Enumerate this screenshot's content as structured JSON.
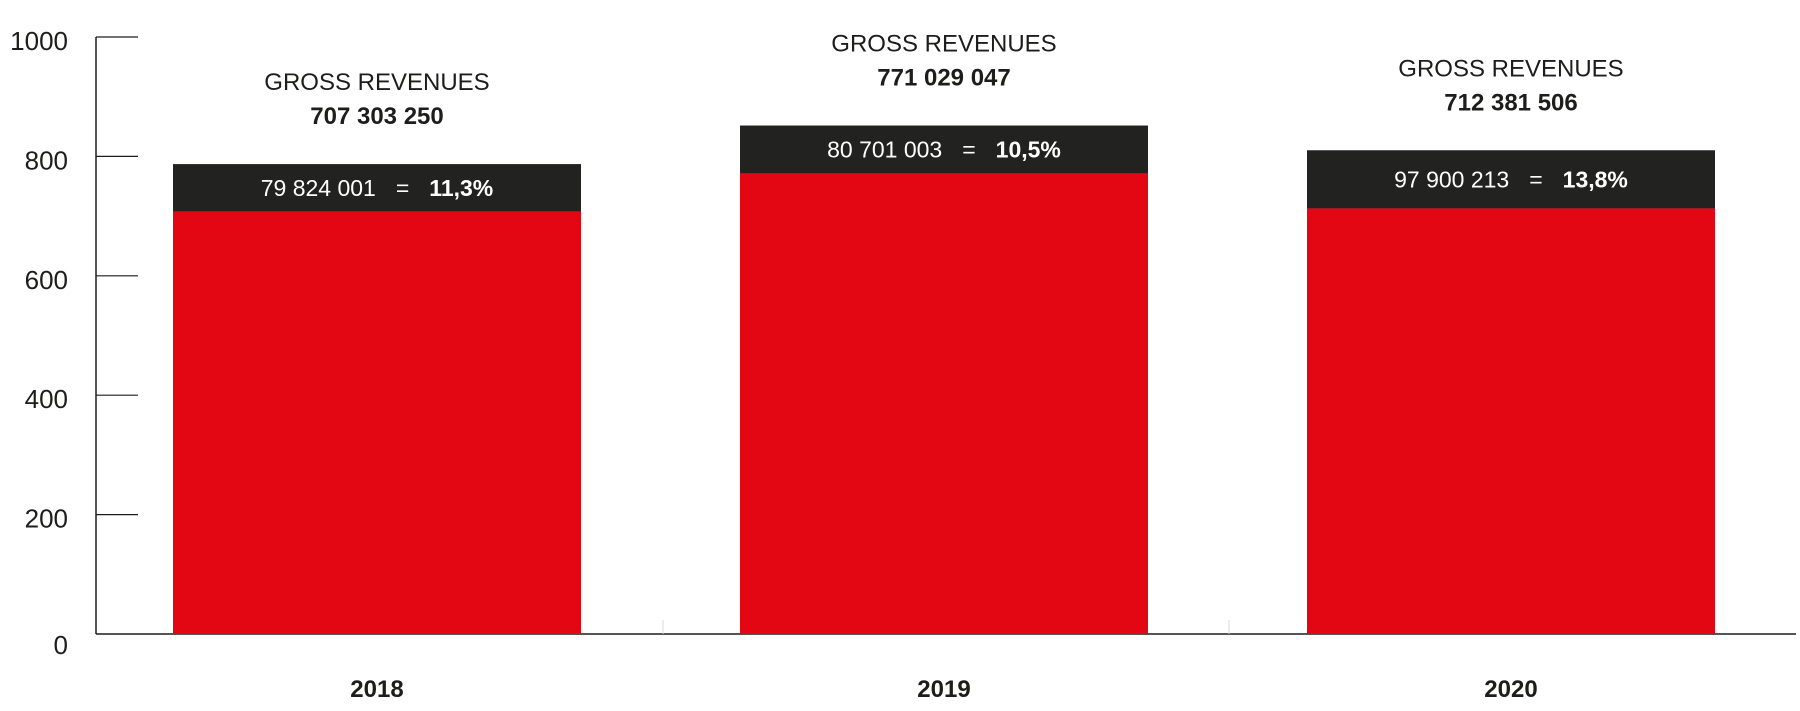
{
  "chart_data": {
    "type": "bar",
    "stacked": true,
    "categories": [
      "2018",
      "2019",
      "2020"
    ],
    "ylim": [
      0,
      1000
    ],
    "yticks": [
      0,
      200,
      400,
      600,
      800,
      1000
    ],
    "grid": false,
    "series": [
      {
        "values": [
          707.30325,
          771.029047,
          712.381506
        ],
        "color": "#e30613"
      },
      {
        "values": [
          79.824001,
          80.701003,
          97.900213
        ],
        "color": "#222221"
      }
    ],
    "annotations": [
      {
        "title": "GROSS REVENUES",
        "value": "707 303 250",
        "segment_value": "79 824 001",
        "equals": "=",
        "segment_pct": "11,3%"
      },
      {
        "title": "GROSS REVENUES",
        "value": "771 029 047",
        "segment_value": "80 701 003",
        "equals": "=",
        "segment_pct": "10,5%"
      },
      {
        "title": "GROSS REVENUES",
        "value": "712 381 506",
        "segment_value": "97 900 213",
        "equals": "=",
        "segment_pct": "13,8%"
      }
    ],
    "colors": {
      "axis": "#1d1d1b",
      "text": "#1d1d1b",
      "segment_text": "#ffffff"
    }
  }
}
